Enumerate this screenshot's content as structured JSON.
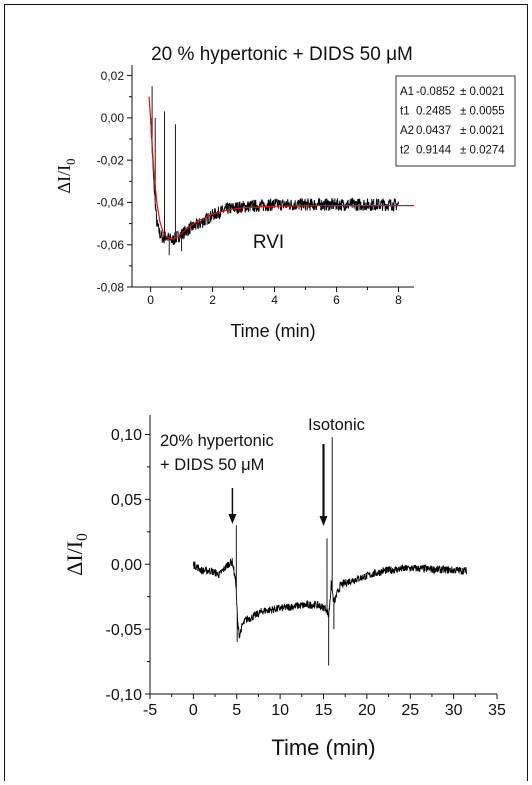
{
  "chart_data": [
    {
      "type": "line",
      "title": "20 % hypertonic + DIDS 50 μM",
      "xlabel": "Time (min)",
      "ylabel": "ΔI/I",
      "ylabel_sub": "0",
      "xlim": [
        -0.6,
        8.5
      ],
      "ylim": [
        -0.08,
        0.025
      ],
      "xticks": [
        0,
        2,
        4,
        6,
        8
      ],
      "xtick_labels": [
        "0",
        "2",
        "4",
        "6",
        "8"
      ],
      "yticks": [
        0.02,
        0.0,
        -0.02,
        -0.04,
        -0.06,
        -0.08
      ],
      "ytick_labels": [
        "0,02",
        "0,00",
        "-0,02",
        "-0,04",
        "-0,06",
        "-0,08"
      ],
      "annotation": "RVI",
      "fit_params": [
        {
          "name": "A1",
          "value": "-0.0852",
          "error": "± 0.0021"
        },
        {
          "name": "t1",
          "value": "0.2485",
          "error": "± 0.0055"
        },
        {
          "name": "A2",
          "value": "0.0437",
          "error": "± 0.0021"
        },
        {
          "name": "t2",
          "value": "0.9144",
          "error": "± 0.0274"
        }
      ],
      "series": [
        {
          "color": "#000000",
          "noise": 0.003,
          "x": [
            0,
            0.1,
            0.2,
            0.3,
            0.4,
            0.5,
            0.7,
            1.0,
            1.3,
            1.6,
            2.0,
            2.5,
            3.0,
            4.0,
            5.0,
            6.0,
            7.0,
            8.0
          ],
          "y": [
            0.0,
            -0.03,
            -0.05,
            -0.055,
            -0.057,
            -0.056,
            -0.058,
            -0.055,
            -0.052,
            -0.05,
            -0.046,
            -0.043,
            -0.042,
            -0.041,
            -0.041,
            -0.041,
            -0.041,
            -0.041
          ],
          "spikes": [
            [
              0.05,
              0.015
            ],
            [
              0.15,
              0.0
            ],
            [
              0.45,
              0.003
            ],
            [
              0.6,
              -0.065
            ],
            [
              0.8,
              -0.003
            ],
            [
              1.0,
              -0.063
            ]
          ]
        },
        {
          "color": "#e01010",
          "noise": 0,
          "x": [
            -0.05,
            0.0,
            0.1,
            0.2,
            0.3,
            0.4,
            0.5,
            0.7,
            0.9,
            1.2,
            1.5,
            2.0,
            2.5,
            3.0,
            4.0,
            5.0,
            6.0,
            7.0,
            8.5
          ],
          "y": [
            0.01,
            0.0,
            -0.025,
            -0.04,
            -0.049,
            -0.054,
            -0.056,
            -0.0575,
            -0.056,
            -0.052,
            -0.049,
            -0.0455,
            -0.0435,
            -0.0425,
            -0.0418,
            -0.0416,
            -0.0415,
            -0.0415,
            -0.0415
          ],
          "spikes": []
        }
      ]
    },
    {
      "type": "line",
      "xlabel": "Time (min)",
      "ylabel": "ΔI/I",
      "ylabel_sub": "0",
      "xlim": [
        -5,
        35
      ],
      "ylim": [
        -0.1,
        0.115
      ],
      "xticks": [
        -5,
        0,
        5,
        10,
        15,
        20,
        25,
        30,
        35
      ],
      "xtick_labels": [
        "-5",
        "0",
        "5",
        "10",
        "15",
        "20",
        "25",
        "30",
        "35"
      ],
      "yticks": [
        0.1,
        0.05,
        0.0,
        -0.05,
        -0.1
      ],
      "ytick_labels": [
        "0,10",
        "0,05",
        "0,00",
        "-0,05",
        "-0,10"
      ],
      "annotations": [
        {
          "line1": "20% hypertonic",
          "line2": "+ DIDS 50 μM",
          "arrow_x": 4.5
        },
        {
          "line1": "Isotonic",
          "line2": "",
          "arrow_x": 15.0
        }
      ],
      "series": [
        {
          "color": "#000000",
          "noise": 0.003,
          "x": [
            0,
            1,
            2,
            3,
            4,
            4.5,
            4.9,
            5.1,
            5.3,
            5.6,
            6,
            7,
            8,
            10,
            12,
            14,
            15.3,
            15.6,
            15.9,
            16.2,
            16.6,
            17,
            18,
            19,
            20,
            22,
            25,
            28,
            31.5
          ],
          "y": [
            0.0,
            -0.005,
            -0.005,
            -0.008,
            0.0,
            0.002,
            -0.015,
            -0.045,
            -0.055,
            -0.048,
            -0.043,
            -0.04,
            -0.036,
            -0.034,
            -0.032,
            -0.031,
            -0.034,
            -0.04,
            -0.015,
            -0.03,
            -0.022,
            -0.016,
            -0.013,
            -0.011,
            -0.009,
            -0.005,
            -0.003,
            -0.004,
            -0.005
          ],
          "spikes": [
            [
              4.95,
              0.03
            ],
            [
              5.05,
              -0.06
            ],
            [
              15.4,
              0.02
            ],
            [
              15.6,
              -0.078
            ],
            [
              16.0,
              0.098
            ],
            [
              16.2,
              -0.05
            ]
          ]
        }
      ]
    }
  ]
}
